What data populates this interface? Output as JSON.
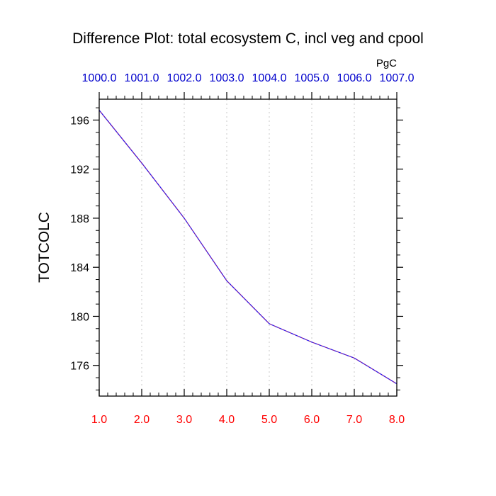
{
  "chart_data": {
    "type": "line",
    "title": "Difference Plot: total ecosystem C, incl veg and cpool",
    "ylabel": "TOTCOLC",
    "top_axis_units": "PgC",
    "x": [
      1.0,
      2.0,
      3.0,
      4.0,
      5.0,
      6.0,
      7.0,
      8.0
    ],
    "x_tick_labels": [
      "1.0",
      "2.0",
      "3.0",
      "4.0",
      "5.0",
      "6.0",
      "7.0",
      "8.0"
    ],
    "top_tick_labels": [
      "1000.0",
      "1001.0",
      "1002.0",
      "1003.0",
      "1004.0",
      "1005.0",
      "1006.0",
      "1007.0"
    ],
    "y_ticks": [
      176,
      180,
      184,
      188,
      192,
      196
    ],
    "y_tick_labels": [
      "176",
      "180",
      "184",
      "188",
      "192",
      "196"
    ],
    "series": [
      {
        "values": [
          196.8,
          192.5,
          188.0,
          182.9,
          179.4,
          177.9,
          176.6,
          174.5
        ]
      }
    ],
    "xlim": [
      1.0,
      8.0
    ],
    "ylim": [
      173.5,
      197.7
    ],
    "grid": "vertical-dotted",
    "colors": {
      "line": "#7b1fa2",
      "line_dash": "#1a1aff",
      "bottom_ticks": "#ff0000",
      "top_ticks": "#0000cc",
      "grid": "#c8c8c8"
    }
  }
}
